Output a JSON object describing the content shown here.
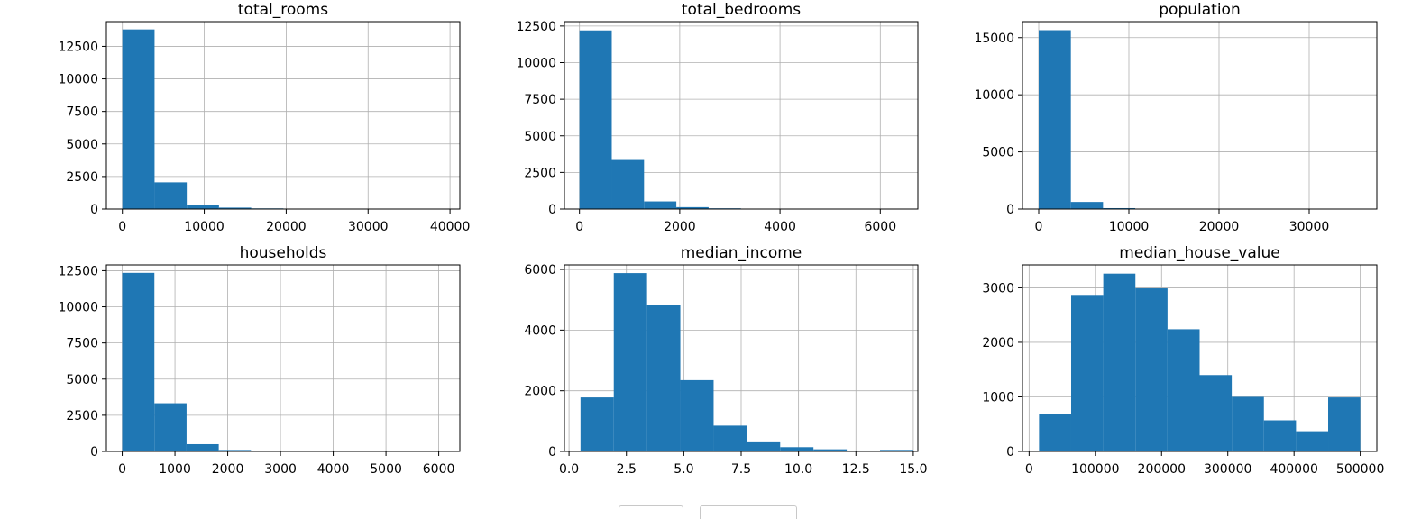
{
  "chart_data": [
    {
      "type": "bar",
      "title": "total_rooms",
      "xlim": [
        -1950,
        41200
      ],
      "ylim": [
        0,
        14400
      ],
      "xticks": [
        0,
        10000,
        20000,
        30000,
        40000
      ],
      "yticks": [
        0,
        2500,
        5000,
        7500,
        10000,
        12500
      ],
      "grid": true,
      "bins": [
        {
          "x0": 0,
          "x1": 3932,
          "count": 13800
        },
        {
          "x0": 3932,
          "x1": 7864,
          "count": 2050
        },
        {
          "x0": 7864,
          "x1": 11796,
          "count": 330
        },
        {
          "x0": 11796,
          "x1": 15728,
          "count": 110
        },
        {
          "x0": 15728,
          "x1": 19660,
          "count": 50
        },
        {
          "x0": 19660,
          "x1": 23592,
          "count": 10
        },
        {
          "x0": 23592,
          "x1": 27524,
          "count": 5
        },
        {
          "x0": 27524,
          "x1": 31456,
          "count": 3
        },
        {
          "x0": 31456,
          "x1": 35388,
          "count": 2
        },
        {
          "x0": 35388,
          "x1": 39320,
          "count": 2
        }
      ]
    },
    {
      "type": "bar",
      "title": "total_bedrooms",
      "xlim": [
        -300,
        6750
      ],
      "ylim": [
        0,
        12800
      ],
      "xticks": [
        0,
        2000,
        4000,
        6000
      ],
      "yticks": [
        0,
        2500,
        5000,
        7500,
        10000,
        12500
      ],
      "grid": true,
      "bins": [
        {
          "x0": 0,
          "x1": 644,
          "count": 12200
        },
        {
          "x0": 644,
          "x1": 1288,
          "count": 3350
        },
        {
          "x0": 1288,
          "x1": 1932,
          "count": 520
        },
        {
          "x0": 1932,
          "x1": 2576,
          "count": 130
        },
        {
          "x0": 2576,
          "x1": 3220,
          "count": 50
        },
        {
          "x0": 3220,
          "x1": 3864,
          "count": 15
        },
        {
          "x0": 3864,
          "x1": 4508,
          "count": 8
        },
        {
          "x0": 4508,
          "x1": 5152,
          "count": 4
        },
        {
          "x0": 5152,
          "x1": 5796,
          "count": 2
        },
        {
          "x0": 5796,
          "x1": 6440,
          "count": 1
        }
      ]
    },
    {
      "type": "bar",
      "title": "population",
      "xlim": [
        -1800,
        37500
      ],
      "ylim": [
        0,
        16400
      ],
      "xticks": [
        0,
        10000,
        20000,
        30000
      ],
      "yticks": [
        0,
        5000,
        10000,
        15000
      ],
      "grid": true,
      "bins": [
        {
          "x0": 0,
          "x1": 3568,
          "count": 15650
        },
        {
          "x0": 3568,
          "x1": 7136,
          "count": 620
        },
        {
          "x0": 7136,
          "x1": 10704,
          "count": 80
        },
        {
          "x0": 10704,
          "x1": 14272,
          "count": 20
        },
        {
          "x0": 14272,
          "x1": 17840,
          "count": 5
        },
        {
          "x0": 17840,
          "x1": 21408,
          "count": 3
        },
        {
          "x0": 21408,
          "x1": 24976,
          "count": 2
        },
        {
          "x0": 24976,
          "x1": 28544,
          "count": 1
        },
        {
          "x0": 28544,
          "x1": 32112,
          "count": 1
        },
        {
          "x0": 32112,
          "x1": 35680,
          "count": 1
        }
      ]
    },
    {
      "type": "bar",
      "title": "households",
      "xlim": [
        -300,
        6400
      ],
      "ylim": [
        0,
        12900
      ],
      "xticks": [
        0,
        1000,
        2000,
        3000,
        4000,
        5000,
        6000
      ],
      "yticks": [
        0,
        2500,
        5000,
        7500,
        10000,
        12500
      ],
      "grid": true,
      "bins": [
        {
          "x0": 0,
          "x1": 610,
          "count": 12350
        },
        {
          "x0": 610,
          "x1": 1220,
          "count": 3330
        },
        {
          "x0": 1220,
          "x1": 1830,
          "count": 500
        },
        {
          "x0": 1830,
          "x1": 2440,
          "count": 100
        },
        {
          "x0": 2440,
          "x1": 3050,
          "count": 30
        },
        {
          "x0": 3050,
          "x1": 3660,
          "count": 10
        },
        {
          "x0": 3660,
          "x1": 4270,
          "count": 5
        },
        {
          "x0": 4270,
          "x1": 4880,
          "count": 3
        },
        {
          "x0": 4880,
          "x1": 5490,
          "count": 2
        },
        {
          "x0": 5490,
          "x1": 6100,
          "count": 2
        }
      ]
    },
    {
      "type": "bar",
      "title": "median_income",
      "xlim": [
        -0.2,
        15.2
      ],
      "ylim": [
        0,
        6150
      ],
      "xticks": [
        0.0,
        2.5,
        5.0,
        7.5,
        10.0,
        12.5,
        15.0
      ],
      "xtick_labels": [
        "0.0",
        "2.5",
        "5.0",
        "7.5",
        "10.0",
        "12.5",
        "15.0"
      ],
      "yticks": [
        0,
        2000,
        4000,
        6000
      ],
      "grid": true,
      "bins": [
        {
          "x0": 0.5,
          "x1": 1.95,
          "count": 1780
        },
        {
          "x0": 1.95,
          "x1": 3.4,
          "count": 5880
        },
        {
          "x0": 3.4,
          "x1": 4.85,
          "count": 4830
        },
        {
          "x0": 4.85,
          "x1": 6.3,
          "count": 2350
        },
        {
          "x0": 6.3,
          "x1": 7.75,
          "count": 850
        },
        {
          "x0": 7.75,
          "x1": 9.2,
          "count": 330
        },
        {
          "x0": 9.2,
          "x1": 10.65,
          "count": 140
        },
        {
          "x0": 10.65,
          "x1": 12.1,
          "count": 70
        },
        {
          "x0": 12.1,
          "x1": 13.55,
          "count": 30
        },
        {
          "x0": 13.55,
          "x1": 15.0,
          "count": 50
        }
      ]
    },
    {
      "type": "bar",
      "title": "median_house_value",
      "xlim": [
        -10000,
        525000
      ],
      "ylim": [
        0,
        3420
      ],
      "xticks": [
        0,
        100000,
        200000,
        300000,
        400000,
        500000
      ],
      "yticks": [
        0,
        1000,
        2000,
        3000
      ],
      "grid": true,
      "bins": [
        {
          "x0": 15000,
          "x1": 63500,
          "count": 690
        },
        {
          "x0": 63500,
          "x1": 112000,
          "count": 2870
        },
        {
          "x0": 112000,
          "x1": 160500,
          "count": 3260
        },
        {
          "x0": 160500,
          "x1": 209000,
          "count": 2990
        },
        {
          "x0": 209000,
          "x1": 257500,
          "count": 2240
        },
        {
          "x0": 257500,
          "x1": 306000,
          "count": 1400
        },
        {
          "x0": 306000,
          "x1": 354500,
          "count": 1000
        },
        {
          "x0": 354500,
          "x1": 403000,
          "count": 570
        },
        {
          "x0": 403000,
          "x1": 451500,
          "count": 370
        },
        {
          "x0": 451500,
          "x1": 500000,
          "count": 990
        }
      ]
    }
  ],
  "colors": {
    "bar": "#1f77b4",
    "grid": "#b0b0b0",
    "axis": "#000000"
  }
}
